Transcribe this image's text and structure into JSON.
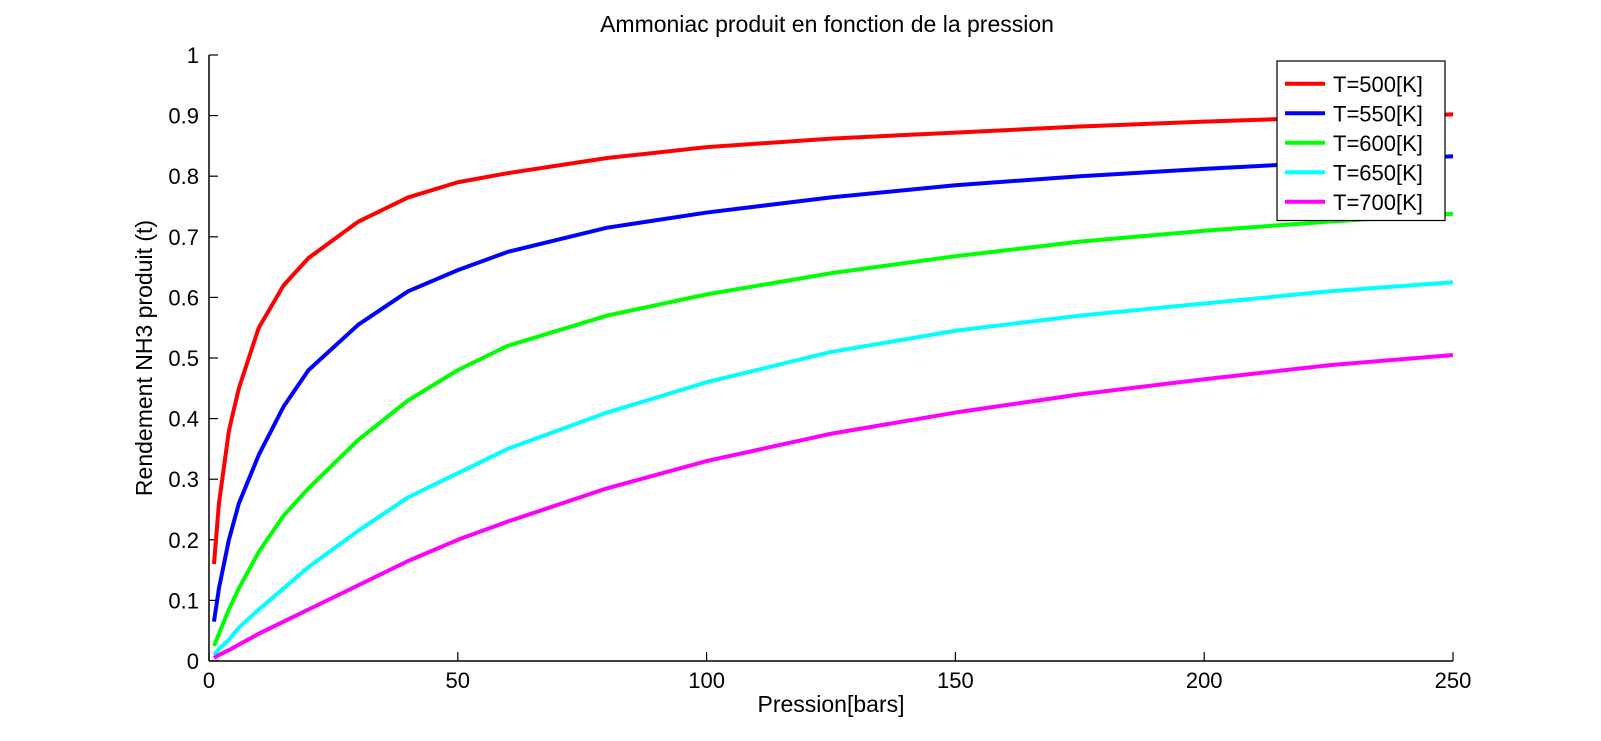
{
  "chart_data": {
    "type": "line",
    "title": "Ammoniac produit en fonction de la pression",
    "xlabel": "Pression[bars]",
    "ylabel": "Rendement NH3 produit (t)",
    "xlim": [
      0,
      250
    ],
    "ylim": [
      0,
      1
    ],
    "grid": false,
    "legend_position": "top-right",
    "x_ticks": [
      "0",
      "50",
      "100",
      "150",
      "200",
      "250"
    ],
    "y_ticks": [
      "0",
      "0.1",
      "0.2",
      "0.3",
      "0.4",
      "0.5",
      "0.6",
      "0.7",
      "0.8",
      "0.9",
      "1"
    ],
    "x": [
      1,
      2,
      4,
      6,
      10,
      15,
      20,
      30,
      40,
      50,
      60,
      80,
      100,
      125,
      150,
      175,
      200,
      225,
      250
    ],
    "series": [
      {
        "name": "T=500[K]",
        "color": "#ff0000",
        "values": [
          0.16,
          0.26,
          0.38,
          0.45,
          0.55,
          0.62,
          0.665,
          0.725,
          0.765,
          0.79,
          0.805,
          0.83,
          0.848,
          0.862,
          0.872,
          0.882,
          0.89,
          0.897,
          0.902
        ]
      },
      {
        "name": "T=550[K]",
        "color": "#0000ff",
        "values": [
          0.065,
          0.12,
          0.2,
          0.26,
          0.34,
          0.42,
          0.48,
          0.555,
          0.61,
          0.645,
          0.675,
          0.715,
          0.74,
          0.765,
          0.785,
          0.8,
          0.812,
          0.823,
          0.833
        ]
      },
      {
        "name": "T=600[K]",
        "color": "#00ff00",
        "values": [
          0.025,
          0.045,
          0.085,
          0.12,
          0.18,
          0.24,
          0.285,
          0.365,
          0.43,
          0.48,
          0.52,
          0.57,
          0.605,
          0.64,
          0.668,
          0.692,
          0.71,
          0.725,
          0.738
        ]
      },
      {
        "name": "T=650[K]",
        "color": "#00ffff",
        "values": [
          0.01,
          0.02,
          0.035,
          0.055,
          0.085,
          0.12,
          0.155,
          0.215,
          0.27,
          0.31,
          0.35,
          0.41,
          0.46,
          0.51,
          0.545,
          0.57,
          0.59,
          0.61,
          0.625
        ]
      },
      {
        "name": "T=700[K]",
        "color": "#ff00ff",
        "values": [
          0.005,
          0.01,
          0.018,
          0.027,
          0.045,
          0.065,
          0.085,
          0.125,
          0.165,
          0.2,
          0.23,
          0.285,
          0.33,
          0.375,
          0.41,
          0.44,
          0.465,
          0.488,
          0.505
        ]
      }
    ]
  }
}
